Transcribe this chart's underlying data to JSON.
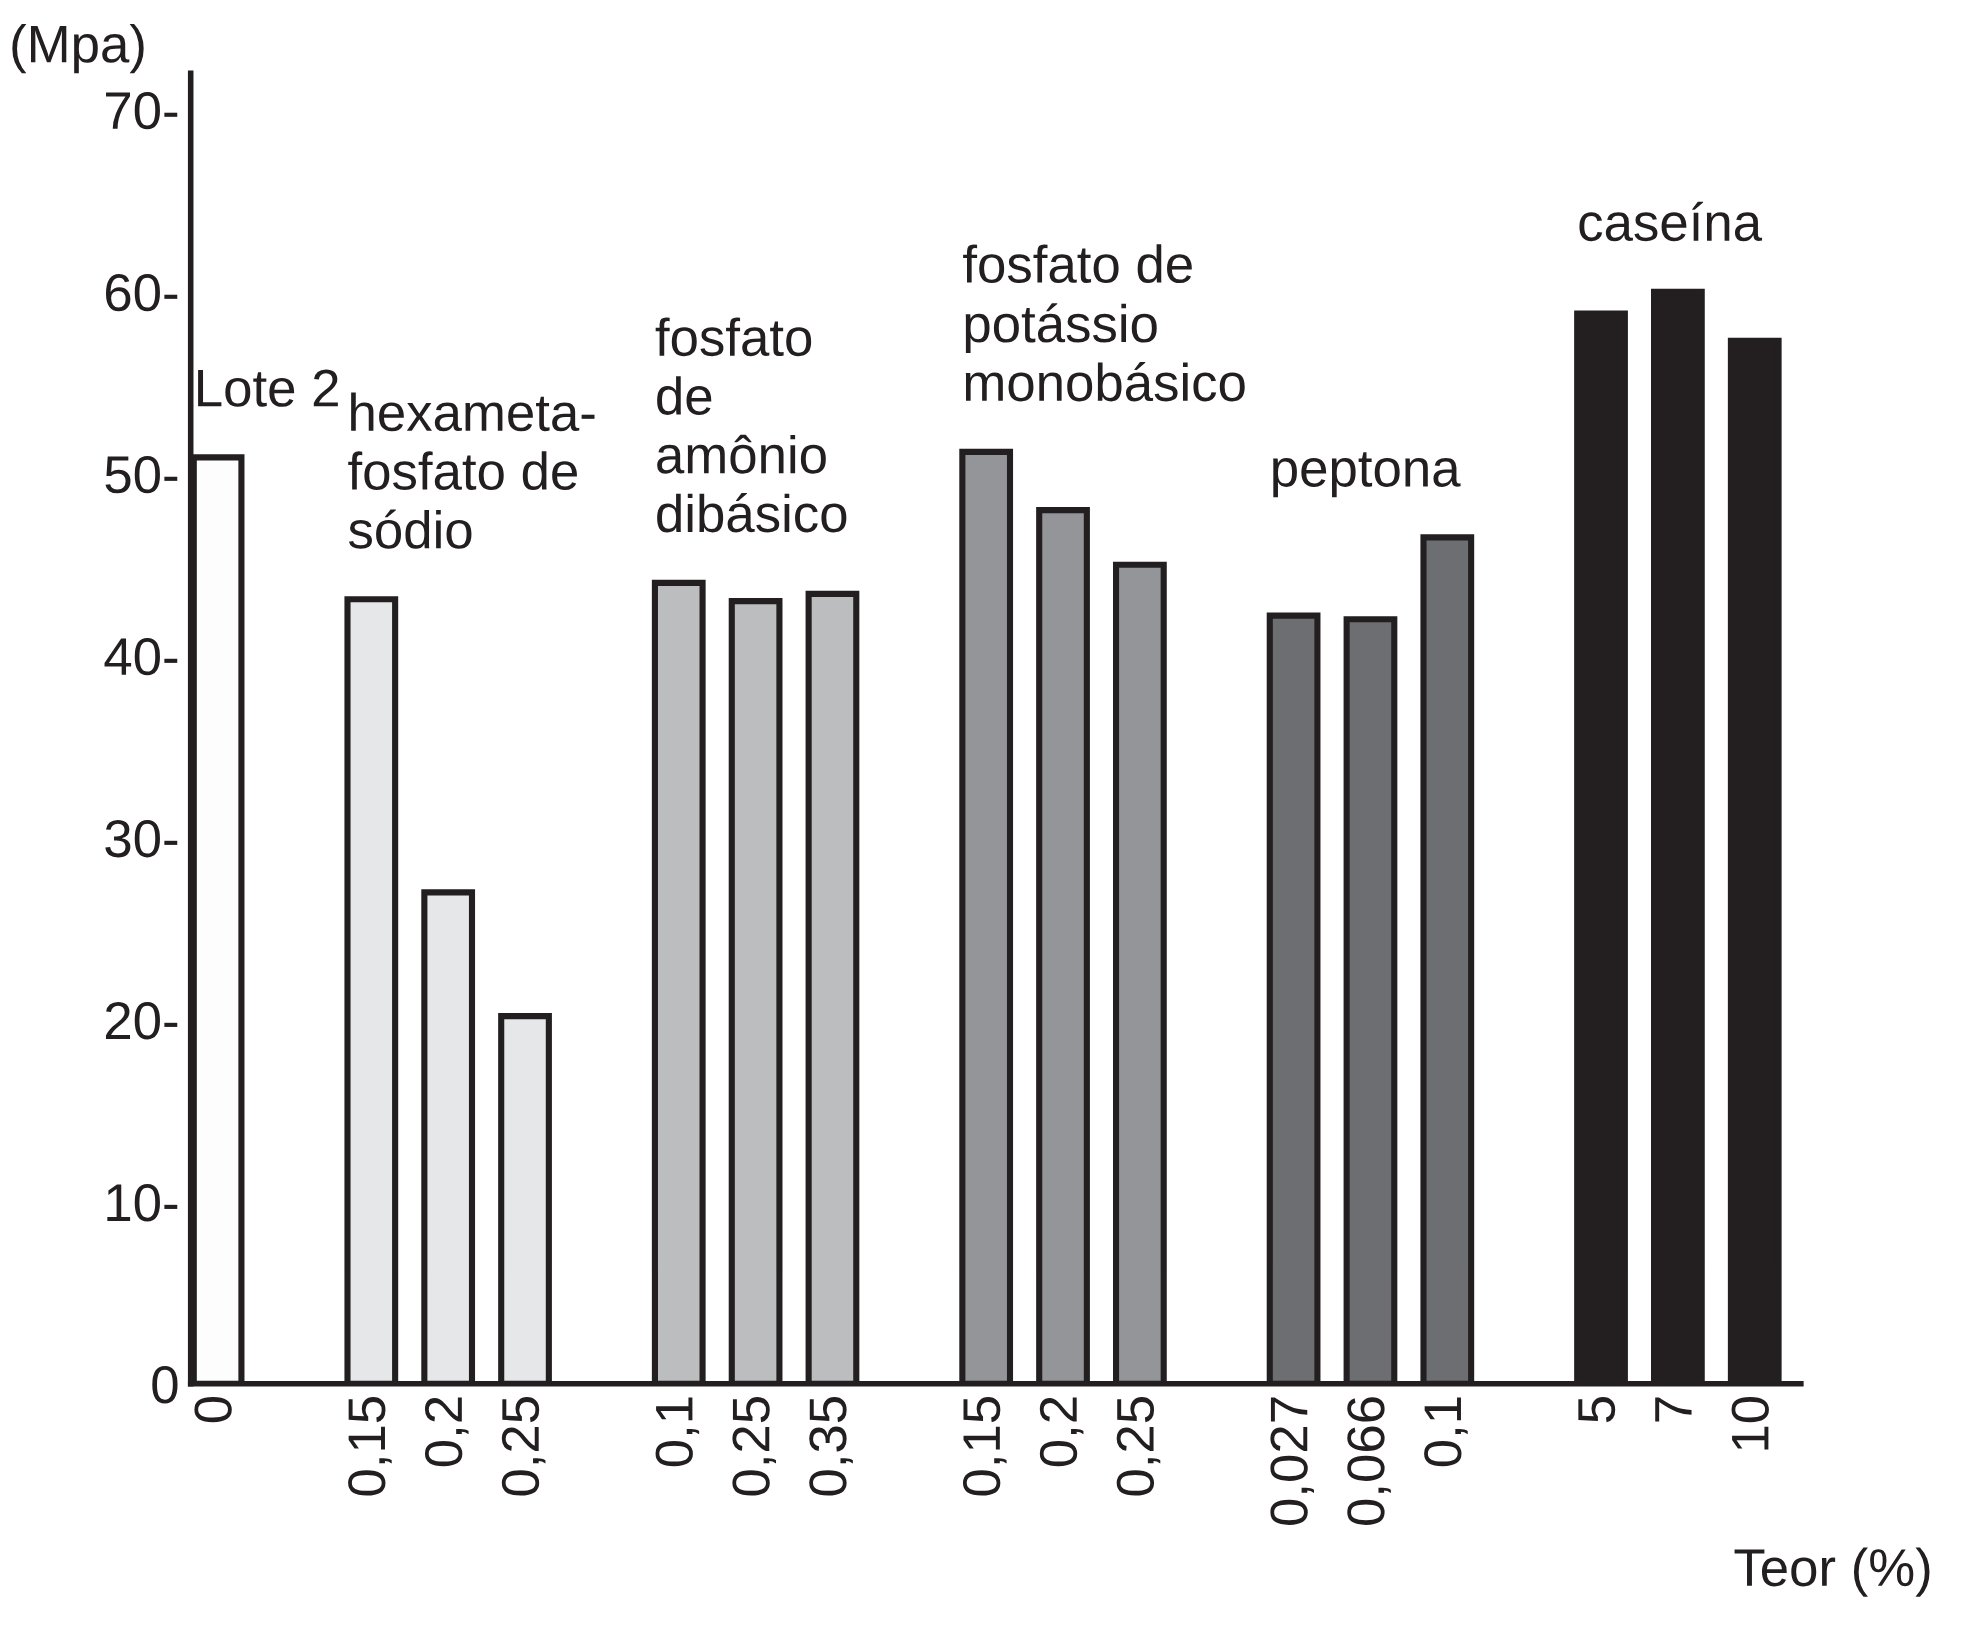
{
  "chart_data": {
    "type": "bar",
    "ylabel": "(Mpa)",
    "xlabel": "Teor (%)",
    "categories": [
      "0",
      "0,15",
      "0,2",
      "0,25",
      "0,1",
      "0,25",
      "0,35",
      "0,15",
      "0,2",
      "0,25",
      "0,027",
      "0,066",
      "0,1",
      "5",
      "7",
      "10"
    ],
    "series": [
      {
        "name": "Lote 2",
        "color": "#fdfdfd",
        "values": [
          50.9,
          null,
          null,
          null,
          null,
          null,
          null,
          null,
          null,
          null,
          null,
          null,
          null,
          null,
          null,
          null
        ]
      },
      {
        "name": "hexameta-\nfosfato de\nsódio",
        "color": "#e6e7e8",
        "values": [
          null,
          43.1,
          27.0,
          20.2,
          null,
          null,
          null,
          null,
          null,
          null,
          null,
          null,
          null,
          null,
          null,
          null
        ]
      },
      {
        "name": "fosfato\nde\namônio\ndibásico",
        "color": "#bcbdbf",
        "values": [
          null,
          null,
          null,
          null,
          44.0,
          43.0,
          43.4,
          null,
          null,
          null,
          null,
          null,
          null,
          null,
          null,
          null
        ]
      },
      {
        "name": "fosfato de\npotássio\nmonobásico",
        "color": "#939598",
        "values": [
          null,
          null,
          null,
          null,
          null,
          null,
          null,
          51.2,
          48.0,
          45.0,
          null,
          null,
          null,
          null,
          null,
          null
        ]
      },
      {
        "name": "peptona",
        "color": "#6d6e71",
        "values": [
          null,
          null,
          null,
          null,
          null,
          null,
          null,
          null,
          null,
          null,
          42.2,
          42.0,
          46.5,
          null,
          null,
          null
        ]
      },
      {
        "name": "caseína",
        "color": "#231f20",
        "values": [
          null,
          null,
          null,
          null,
          null,
          null,
          null,
          null,
          null,
          null,
          null,
          null,
          null,
          58.8,
          60.0,
          57.3
        ]
      }
    ],
    "ylim": [
      0,
      72
    ],
    "yticks": [
      {
        "value": 0,
        "label": "0"
      },
      {
        "value": 10,
        "label": "10-"
      },
      {
        "value": 20,
        "label": "20-"
      },
      {
        "value": 30,
        "label": "30-"
      },
      {
        "value": 40,
        "label": "40-"
      },
      {
        "value": 50,
        "label": "50-"
      },
      {
        "value": 60,
        "label": "60-"
      },
      {
        "value": 70,
        "label": "70-"
      }
    ],
    "grid": false,
    "legend": false
  }
}
